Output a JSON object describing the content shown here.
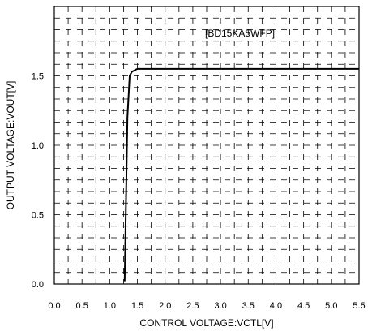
{
  "chart_data": {
    "type": "line",
    "title": "",
    "xlabel": "CONTROL VOLTAGE:VCTL[V]",
    "ylabel": "OUTPUT VOLTAGE:VOUT[V]",
    "xlim": [
      0,
      5.5
    ],
    "ylim": [
      0,
      2.0
    ],
    "x_ticks": [
      "0.0",
      "0.5",
      "1.0",
      "1.5",
      "2.0",
      "2.5",
      "3.0",
      "3.5",
      "4.0",
      "4.5",
      "5.0",
      "5.5"
    ],
    "y_ticks": [
      "0.0",
      "0.5",
      "1.0",
      "1.5"
    ],
    "grid": "dashed",
    "series": [
      {
        "name": "[BD15KA5WFP]",
        "color": "#000000",
        "x": [
          1.27,
          1.32,
          1.36,
          1.4,
          1.5,
          2.0,
          3.0,
          4.0,
          5.0,
          5.5
        ],
        "y": [
          0.02,
          1.2,
          1.5,
          1.53,
          1.55,
          1.55,
          1.55,
          1.55,
          1.55,
          1.55
        ]
      }
    ]
  }
}
